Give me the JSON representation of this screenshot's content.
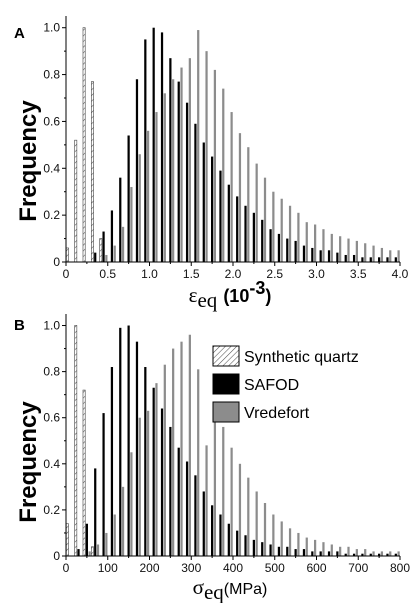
{
  "colors": {
    "synthetic_quartz": "hatched",
    "safod": "#000000",
    "vredefort": "#8c8c8c"
  },
  "chart_data": [
    {
      "type": "bar",
      "panel_label": "A",
      "ylabel": "Frequency",
      "xlabel_symbol": "ε",
      "xlabel_sub": "eq",
      "xlabel_units_open": "(10",
      "xlabel_units_sup": "-3",
      "xlabel_units_close": ")",
      "xlim": [
        0,
        4.0
      ],
      "ylim": [
        0,
        1.05
      ],
      "xticks": [
        "0",
        "0.5",
        "1.0",
        "1.5",
        "2.0",
        "2.5",
        "3.0",
        "3.5",
        "4.0"
      ],
      "xtick_values": [
        0,
        0.5,
        1.0,
        1.5,
        2.0,
        2.5,
        3.0,
        3.5,
        4.0
      ],
      "yticks": [
        "0",
        "0.2",
        "0.4",
        "0.6",
        "0.8",
        "1.0"
      ],
      "ytick_values": [
        0,
        0.2,
        0.4,
        0.6,
        0.8,
        1.0
      ],
      "bin_width": 0.1,
      "series": [
        {
          "name": "Synthetic quartz",
          "style": "hatch",
          "x": [
            0.05,
            0.15,
            0.25,
            0.35,
            0.45
          ],
          "values": [
            0.06,
            0.52,
            1.0,
            0.77,
            0.1
          ]
        },
        {
          "name": "SAFOD",
          "style": "black",
          "x": [
            0.35,
            0.45,
            0.55,
            0.65,
            0.75,
            0.85,
            0.95,
            1.05,
            1.15,
            1.25,
            1.35,
            1.45,
            1.55,
            1.65,
            1.75,
            1.85,
            1.95,
            2.05,
            2.15,
            2.25,
            2.35,
            2.45,
            2.55,
            2.65,
            2.75,
            2.85,
            2.95,
            3.05,
            3.15,
            3.25,
            3.35,
            3.45,
            3.55,
            3.65,
            3.75,
            3.85,
            3.95
          ],
          "values": [
            0.04,
            0.13,
            0.22,
            0.36,
            0.54,
            0.78,
            0.95,
            1.0,
            0.98,
            0.87,
            0.77,
            0.68,
            0.59,
            0.51,
            0.45,
            0.39,
            0.33,
            0.28,
            0.24,
            0.21,
            0.18,
            0.14,
            0.12,
            0.1,
            0.09,
            0.07,
            0.06,
            0.05,
            0.05,
            0.04,
            0.03,
            0.03,
            0.02,
            0.02,
            0.02,
            0.02,
            0.02
          ]
        },
        {
          "name": "Vredefort",
          "style": "gray",
          "x": [
            0.45,
            0.55,
            0.65,
            0.75,
            0.85,
            0.95,
            1.05,
            1.15,
            1.25,
            1.35,
            1.45,
            1.55,
            1.65,
            1.75,
            1.85,
            1.95,
            2.05,
            2.15,
            2.25,
            2.35,
            2.45,
            2.55,
            2.65,
            2.75,
            2.85,
            2.95,
            3.05,
            3.15,
            3.25,
            3.35,
            3.45,
            3.55,
            3.65,
            3.75,
            3.85,
            3.95
          ],
          "values": [
            0.03,
            0.07,
            0.15,
            0.32,
            0.46,
            0.56,
            0.64,
            0.72,
            0.78,
            0.83,
            0.87,
            0.99,
            0.9,
            0.82,
            0.74,
            0.64,
            0.55,
            0.49,
            0.42,
            0.36,
            0.3,
            0.27,
            0.24,
            0.21,
            0.17,
            0.16,
            0.14,
            0.12,
            0.11,
            0.1,
            0.09,
            0.08,
            0.07,
            0.06,
            0.05,
            0.05
          ]
        }
      ]
    },
    {
      "type": "bar",
      "panel_label": "B",
      "ylabel": "Frequency",
      "xlabel_symbol": "σ",
      "xlabel_sub": "eq",
      "xlabel_units": "(MPa)",
      "xlim": [
        0,
        800
      ],
      "ylim": [
        0,
        1.05
      ],
      "xticks": [
        "0",
        "100",
        "200",
        "300",
        "400",
        "500",
        "600",
        "700",
        "800"
      ],
      "xtick_values": [
        0,
        100,
        200,
        300,
        400,
        500,
        600,
        700,
        800
      ],
      "yticks": [
        "0",
        "0.2",
        "0.4",
        "0.6",
        "0.8",
        "1.0"
      ],
      "ytick_values": [
        0,
        0.2,
        0.4,
        0.6,
        0.8,
        1.0
      ],
      "bin_width": 20,
      "series": [
        {
          "name": "Synthetic quartz",
          "style": "hatch",
          "x": [
            10,
            30,
            50,
            70
          ],
          "values": [
            0.14,
            1.0,
            0.72,
            0.04
          ]
        },
        {
          "name": "SAFOD",
          "style": "black",
          "x": [
            30,
            50,
            70,
            90,
            110,
            130,
            150,
            170,
            190,
            210,
            230,
            250,
            270,
            290,
            310,
            330,
            350,
            370,
            390,
            410,
            430,
            450,
            470,
            490,
            510,
            530,
            550,
            570,
            590,
            610,
            630,
            650,
            670,
            690,
            710,
            730,
            750,
            770,
            790
          ],
          "values": [
            0.03,
            0.14,
            0.38,
            0.62,
            0.82,
            0.99,
            1.0,
            0.93,
            0.82,
            0.73,
            0.64,
            0.56,
            0.47,
            0.41,
            0.35,
            0.28,
            0.22,
            0.18,
            0.14,
            0.11,
            0.09,
            0.07,
            0.06,
            0.05,
            0.04,
            0.04,
            0.03,
            0.03,
            0.02,
            0.02,
            0.02,
            0.02,
            0.01,
            0.01,
            0.01,
            0.01,
            0.01,
            0.01,
            0.01
          ]
        },
        {
          "name": "Vredefort",
          "style": "gray",
          "x": [
            50,
            70,
            90,
            110,
            130,
            150,
            170,
            190,
            210,
            230,
            250,
            270,
            290,
            310,
            330,
            350,
            370,
            390,
            410,
            430,
            450,
            470,
            490,
            510,
            530,
            550,
            570,
            590,
            610,
            630,
            650,
            670,
            690,
            710,
            730,
            750,
            770,
            790
          ],
          "values": [
            0.02,
            0.05,
            0.1,
            0.18,
            0.3,
            0.45,
            0.6,
            0.63,
            0.75,
            0.83,
            0.9,
            0.93,
            0.96,
            0.81,
            0.48,
            0.66,
            0.56,
            0.47,
            0.4,
            0.34,
            0.28,
            0.23,
            0.18,
            0.15,
            0.12,
            0.1,
            0.08,
            0.07,
            0.06,
            0.05,
            0.04,
            0.04,
            0.03,
            0.03,
            0.02,
            0.02,
            0.02,
            0.02
          ]
        }
      ],
      "legend": {
        "placement": "upper-right",
        "items": [
          "Synthetic quartz",
          "SAFOD",
          "Vredefort"
        ]
      }
    }
  ]
}
